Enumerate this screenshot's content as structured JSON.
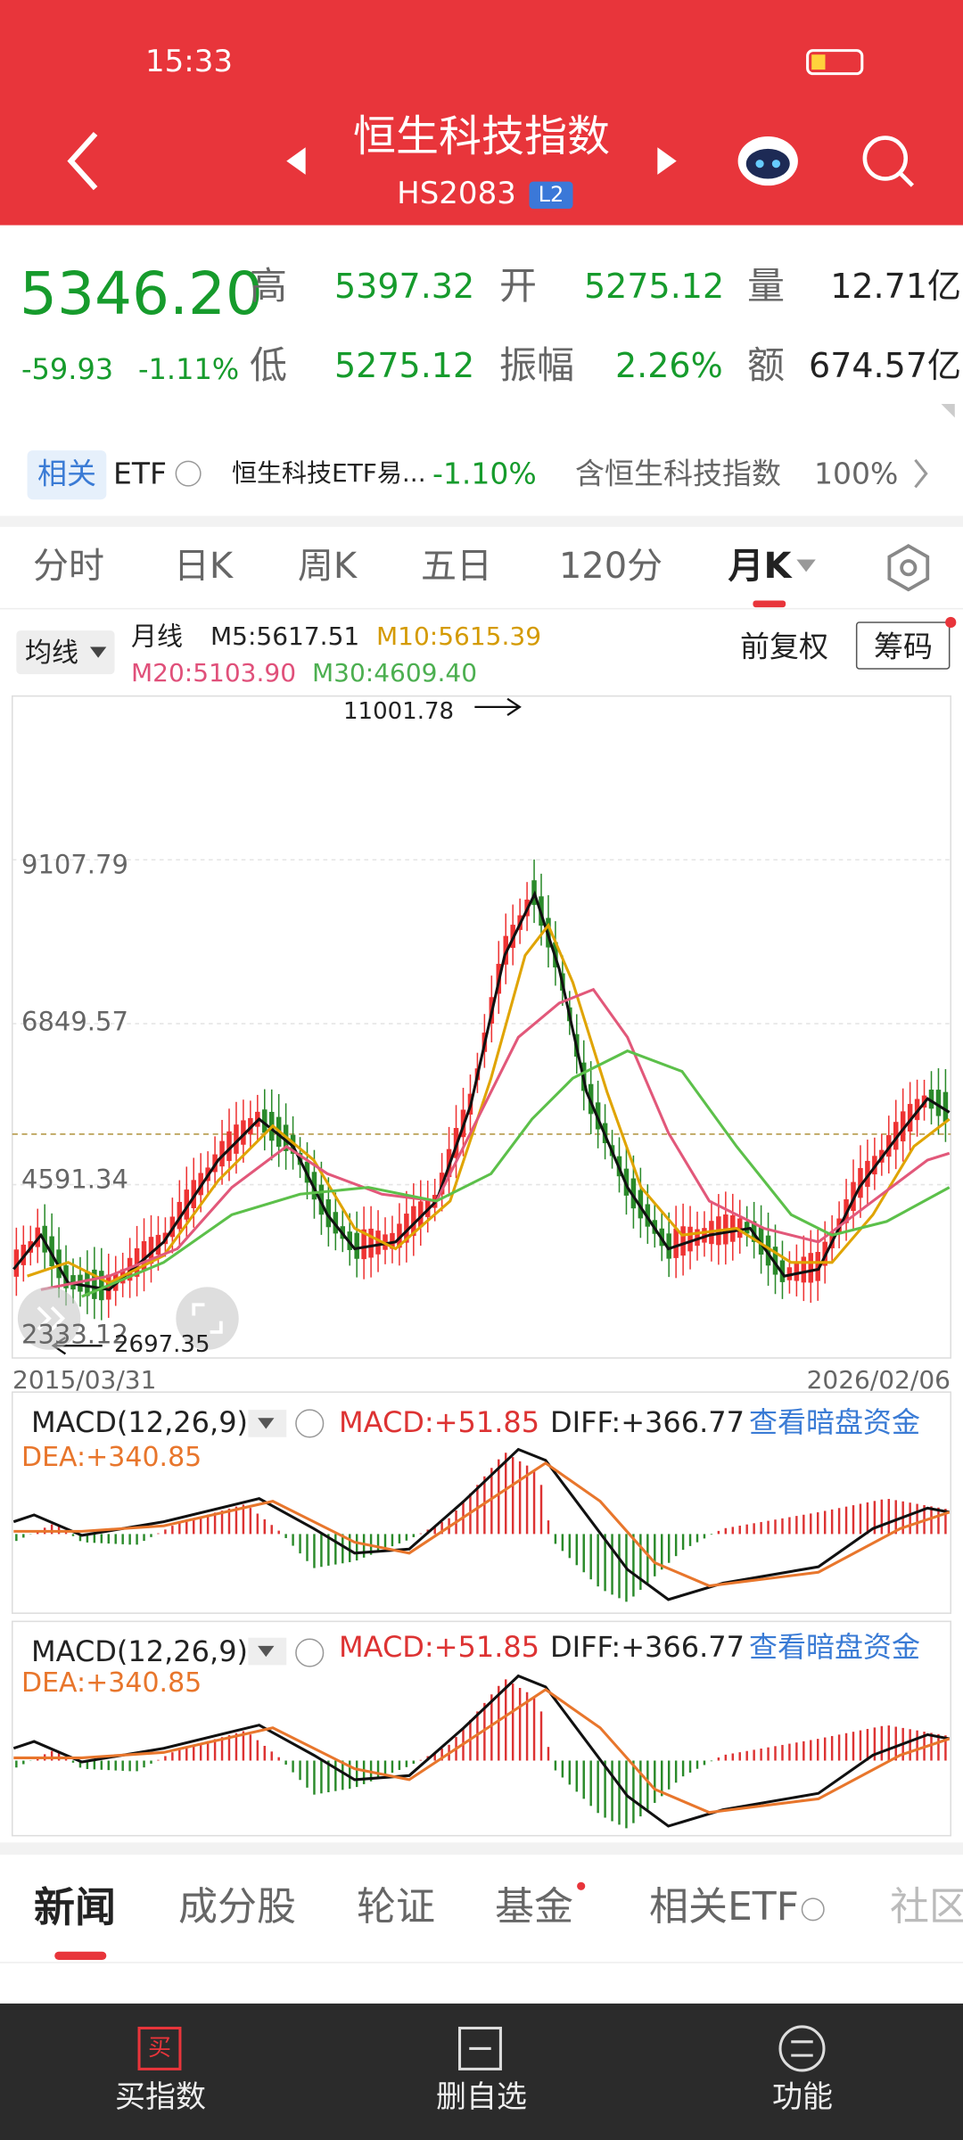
{
  "status": {
    "time": "15:33"
  },
  "header": {
    "title": "恒生科技指数",
    "code": "HS2083",
    "badge": "L2"
  },
  "quote": {
    "price": "5346.20",
    "change": "-59.93",
    "pct": "-1.11%",
    "fields": [
      {
        "label": "高",
        "value": "5397.32"
      },
      {
        "label": "开",
        "value": "5275.12"
      },
      {
        "label": "量",
        "value": "12.71亿"
      },
      {
        "label": "低",
        "value": "5275.12"
      },
      {
        "label": "振幅",
        "value": "2.26%"
      },
      {
        "label": "额",
        "value": "674.57亿"
      }
    ]
  },
  "related": {
    "tag": "相关",
    "etf": "ETF",
    "name": "恒生科技ETF易...",
    "change": "-1.10%",
    "desc": "含恒生科技指数",
    "pct": "100%"
  },
  "tabs": [
    "分时",
    "日K",
    "周K",
    "五日",
    "120分",
    "月K"
  ],
  "ma": {
    "selector": "均线",
    "kind": "月线",
    "items": [
      "M5:5617.51",
      "M10:5615.39",
      "M20:5103.90",
      "M30:4609.40"
    ],
    "restore": "前复权",
    "chip": "筹码"
  },
  "kchart": {
    "ylabels": [
      "9107.79",
      "6849.57",
      "4591.34",
      "2333.12"
    ],
    "high": "11001.78",
    "low": "2697.35",
    "start": "2015/03/31",
    "end": "2026/02/06"
  },
  "macd": [
    {
      "label": "MACD(12,26,9)",
      "macd": "MACD:+51.85",
      "diff": "DIFF:+366.77",
      "link": "查看暗盘资金",
      "dea": "DEA:+340.85"
    },
    {
      "label": "MACD(12,26,9)",
      "macd": "MACD:+51.85",
      "diff": "DIFF:+366.77",
      "link": "查看暗盘资金",
      "dea": "DEA:+340.85"
    }
  ],
  "bottom_tabs": [
    "新闻",
    "成分股",
    "轮证",
    "基金",
    "相关ETF",
    "社区"
  ],
  "bottom_bar": {
    "icon": "买",
    "items": [
      "买指数",
      "删自选",
      "功能"
    ]
  }
}
